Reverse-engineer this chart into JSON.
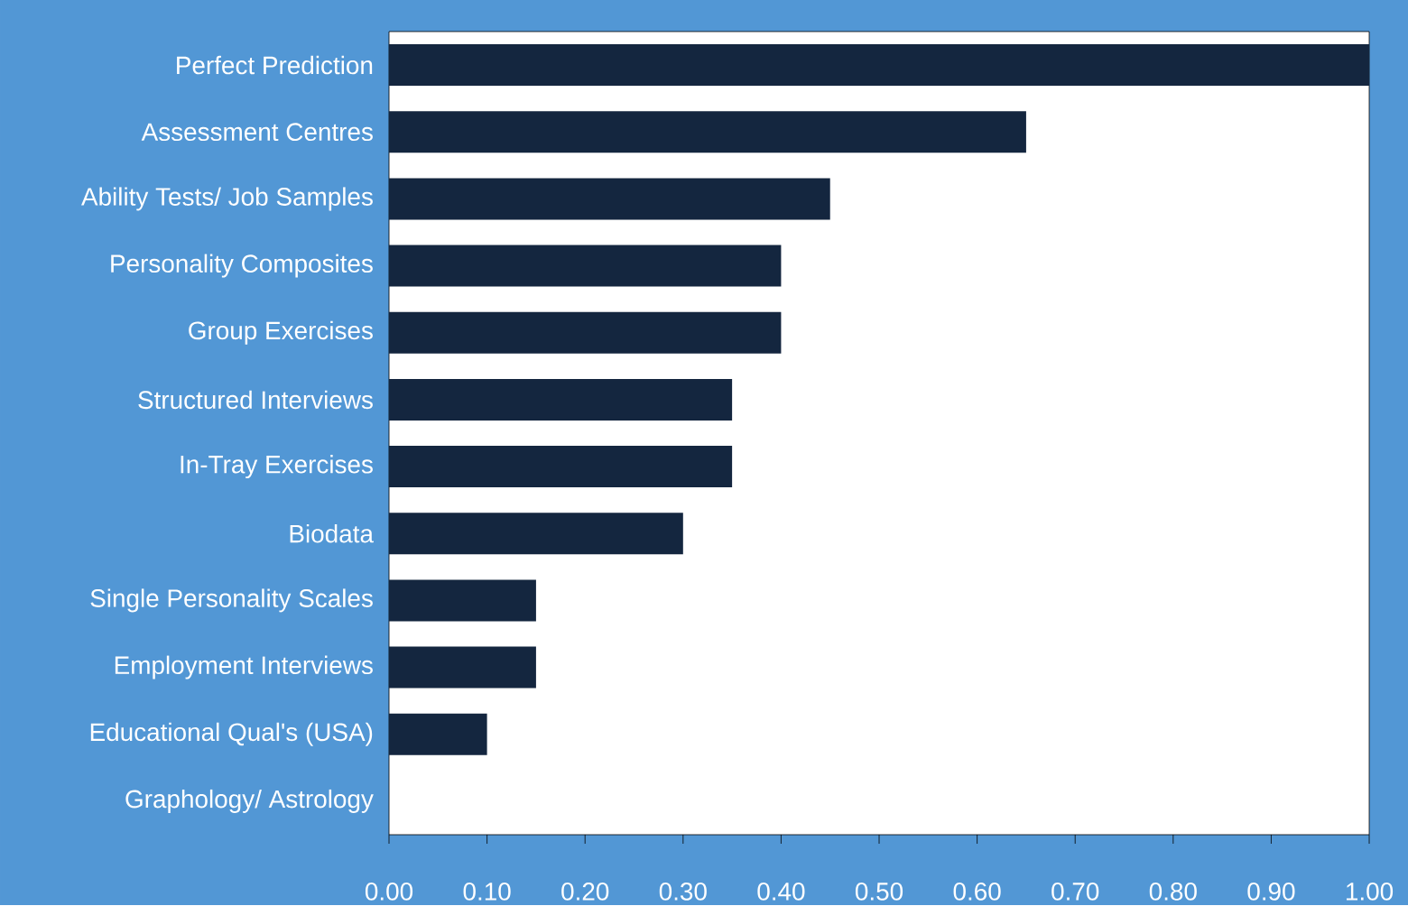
{
  "chart_data": {
    "type": "bar",
    "orientation": "horizontal",
    "color": "#14263f",
    "categories": [
      "Perfect Prediction",
      "Assessment Centres",
      "Ability Tests/ Job Samples",
      "Personality Composites",
      "Group Exercises",
      "Structured Interviews",
      "In-Tray Exercises",
      "Biodata",
      "Single Personality  Scales",
      "Employment Interviews",
      "Educational Qual's (USA)",
      "Graphology/ Astrology"
    ],
    "values": [
      1.0,
      0.65,
      0.45,
      0.4,
      0.4,
      0.35,
      0.35,
      0.3,
      0.15,
      0.15,
      0.1,
      0
    ],
    "xlim": [
      0,
      1
    ],
    "xticks": [
      {
        "value": 0,
        "label": "0.00"
      },
      {
        "value": 0.1,
        "label": "0.10"
      },
      {
        "value": 0.2,
        "label": "0.20"
      },
      {
        "value": 0.3,
        "label": "0.30"
      },
      {
        "value": 0.4,
        "label": "0.40"
      },
      {
        "value": 0.5,
        "label": "0.50"
      },
      {
        "value": 0.6,
        "label": "0.60"
      },
      {
        "value": 0.7,
        "label": "0.70"
      },
      {
        "value": 0.8,
        "label": "0.80"
      },
      {
        "value": 0.9,
        "label": "0.90"
      },
      {
        "value": 1,
        "label": "1.00"
      }
    ]
  }
}
